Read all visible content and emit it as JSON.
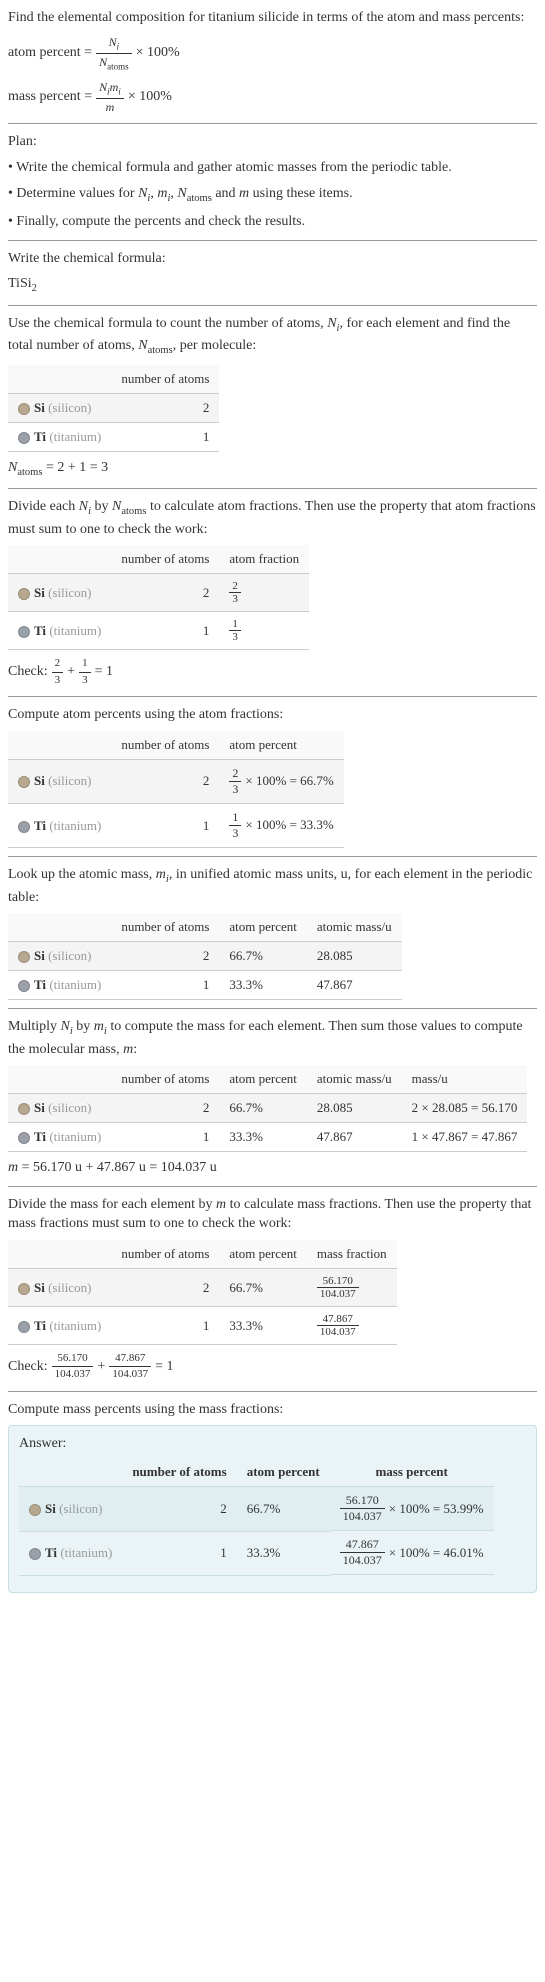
{
  "intro": {
    "title": "Find the elemental composition for titanium silicide in terms of the atom and mass percents:",
    "atom_percent_label": "atom percent =",
    "atom_percent_num": "N",
    "atom_percent_num_sub": "i",
    "atom_percent_den": "N",
    "atom_percent_den_sub": "atoms",
    "times_100": "× 100%",
    "mass_percent_label": "mass percent =",
    "mass_percent_num1": "N",
    "mass_percent_num1_sub": "i",
    "mass_percent_num2": "m",
    "mass_percent_num2_sub": "i",
    "mass_percent_den": "m"
  },
  "plan": {
    "title": "Plan:",
    "b1_a": "• Write the chemical formula and gather atomic masses from the periodic table.",
    "b2_a": "• Determine values for ",
    "b2_n": "N",
    "b2_i": "i",
    "b2_c1": ", ",
    "b2_m": "m",
    "b2_c2": ", ",
    "b2_n2": "N",
    "b2_atoms": "atoms",
    "b2_and": " and ",
    "b2_m2": "m",
    "b2_end": " using these items.",
    "b3": "• Finally, compute the percents and check the results."
  },
  "formula": {
    "title": "Write the chemical formula:",
    "value": "TiSi",
    "sub": "2"
  },
  "count": {
    "title_a": "Use the chemical formula to count the number of atoms, ",
    "title_n": "N",
    "title_i": "i",
    "title_b": ", for each element and find the total number of atoms, ",
    "title_n2": "N",
    "title_atoms": "atoms",
    "title_c": ", per molecule:",
    "eq_left": "N",
    "eq_sub": "atoms",
    "eq_right": " = 2 + 1 = 3"
  },
  "headers": {
    "num_atoms": "number of atoms",
    "atom_fraction": "atom fraction",
    "atom_percent": "atom percent",
    "atomic_mass": "atomic mass/u",
    "mass_u": "mass/u",
    "mass_fraction": "mass fraction",
    "mass_percent": "mass percent"
  },
  "elements": {
    "si": {
      "symbol": "Si",
      "name": "(silicon)",
      "color": "#b8a890"
    },
    "ti": {
      "symbol": "Ti",
      "name": "(titanium)",
      "color": "#9aa0a8"
    }
  },
  "t1": {
    "si_n": "2",
    "ti_n": "1"
  },
  "fractions": {
    "title_a": "Divide each ",
    "title_n": "N",
    "title_i": "i",
    "title_b": " by ",
    "title_n2": "N",
    "title_atoms": "atoms",
    "title_c": " to calculate atom fractions. Then use the property that atom fractions must sum to one to check the work:",
    "si_num": "2",
    "si_den": "3",
    "ti_num": "1",
    "ti_den": "3",
    "check_label": "Check: ",
    "check_end": " = 1"
  },
  "atom_pct": {
    "title": "Compute atom percents using the atom fractions:",
    "si_frac_num": "2",
    "si_frac_den": "3",
    "si_result": " × 100% = 66.7%",
    "ti_frac_num": "1",
    "ti_frac_den": "3",
    "ti_result": " × 100% = 33.3%"
  },
  "mass_lookup": {
    "title_a": "Look up the atomic mass, ",
    "title_m": "m",
    "title_i": "i",
    "title_b": ", in unified atomic mass units, u, for each element in the periodic table:",
    "si_pct": "66.7%",
    "si_mass": "28.085",
    "ti_pct": "33.3%",
    "ti_mass": "47.867"
  },
  "mass_calc": {
    "title_a": "Multiply ",
    "title_n": "N",
    "title_i": "i",
    "title_b": " by ",
    "title_m": "m",
    "title_i2": "i",
    "title_c": " to compute the mass for each element. Then sum those values to compute the molecular mass, ",
    "title_m2": "m",
    "title_d": ":",
    "si_mass_calc": "2 × 28.085 = 56.170",
    "ti_mass_calc": "1 × 47.867 = 47.867",
    "eq_m": "m",
    "eq_rest": " = 56.170 u + 47.867 u = 104.037 u"
  },
  "mass_frac": {
    "title_a": "Divide the mass for each element by ",
    "title_m": "m",
    "title_b": " to calculate mass fractions. Then use the property that mass fractions must sum to one to check the work:",
    "si_num": "56.170",
    "si_den": "104.037",
    "ti_num": "47.867",
    "ti_den": "104.037",
    "check_label": "Check: ",
    "plus": " + ",
    "check_end": " = 1"
  },
  "mass_pct": {
    "title": "Compute mass percents using the mass fractions:"
  },
  "answer": {
    "label": "Answer:",
    "si_pct": "66.7%",
    "si_frac_num": "56.170",
    "si_frac_den": "104.037",
    "si_result": " × 100% = 53.99%",
    "ti_pct": "33.3%",
    "ti_frac_num": "47.867",
    "ti_frac_den": "104.037",
    "ti_result": " × 100% = 46.01%"
  }
}
